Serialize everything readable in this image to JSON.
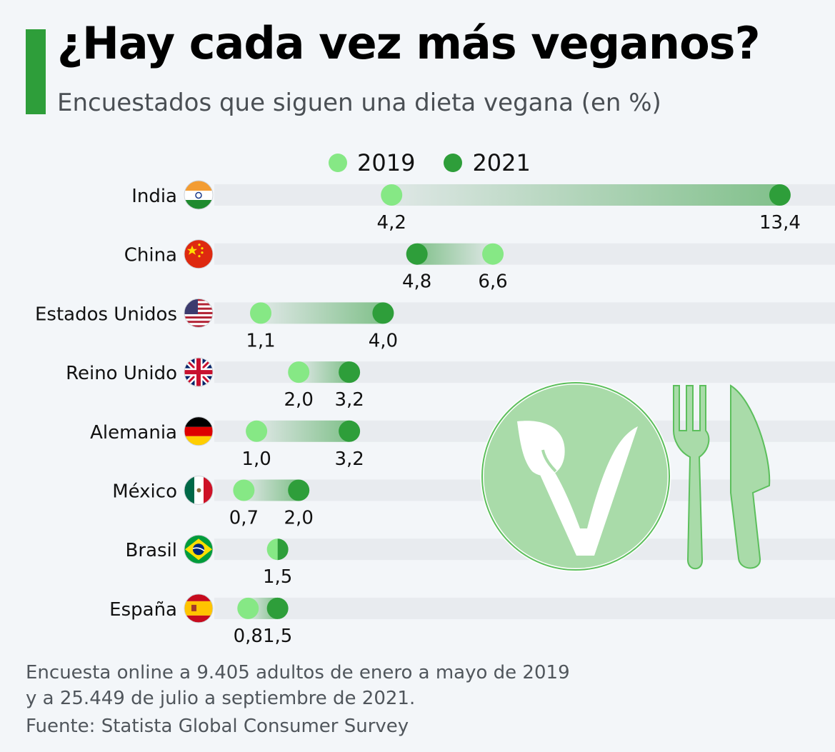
{
  "title": "¿Hay cada vez más veganos?",
  "subtitle": "Encuestados que siguen una dieta vegana (en %)",
  "legend": [
    {
      "label": "2019",
      "color": "#86e885"
    },
    {
      "label": "2021",
      "color": "#2e9e3a"
    }
  ],
  "colors": {
    "accent": "#2e9e3a",
    "light_green": "#86e885",
    "dark_green": "#2e9e3a",
    "track": "#e8ebef",
    "icon_green": "#a9dba9"
  },
  "chart_data": {
    "type": "dumbbell",
    "categories": [
      "India",
      "China",
      "Estados Unidos",
      "Reino Unido",
      "Alemania",
      "México",
      "Brasil",
      "España"
    ],
    "series": [
      {
        "name": "2019",
        "values": [
          4.2,
          6.6,
          1.1,
          2.0,
          1.0,
          0.7,
          1.5,
          0.8
        ]
      },
      {
        "name": "2021",
        "values": [
          13.4,
          4.8,
          4.0,
          3.2,
          3.2,
          2.0,
          1.5,
          1.5
        ]
      }
    ],
    "value_labels": [
      [
        "4,2",
        "13,4"
      ],
      [
        "4,8",
        "6,6"
      ],
      [
        "1,1",
        "4,0"
      ],
      [
        "2,0",
        "3,2"
      ],
      [
        "1,0",
        "3,2"
      ],
      [
        "0,7",
        "2,0"
      ],
      [
        "1,5"
      ],
      [
        "0,8",
        "1,5"
      ]
    ],
    "flags": [
      "india-flag-icon",
      "china-flag-icon",
      "usa-flag-icon",
      "uk-flag-icon",
      "germany-flag-icon",
      "mexico-flag-icon",
      "brazil-flag-icon",
      "spain-flag-icon"
    ],
    "xlim": [
      0,
      14
    ]
  },
  "footnote": {
    "line1": "Encuesta online a 9.405 adultos de enero a mayo de 2019",
    "line2": "y a 25.449 de julio a septiembre de 2021."
  },
  "source": "Fuente: Statista Global Consumer Survey",
  "decoration": {
    "icon": "vegan-plate-and-cutlery-icon"
  }
}
